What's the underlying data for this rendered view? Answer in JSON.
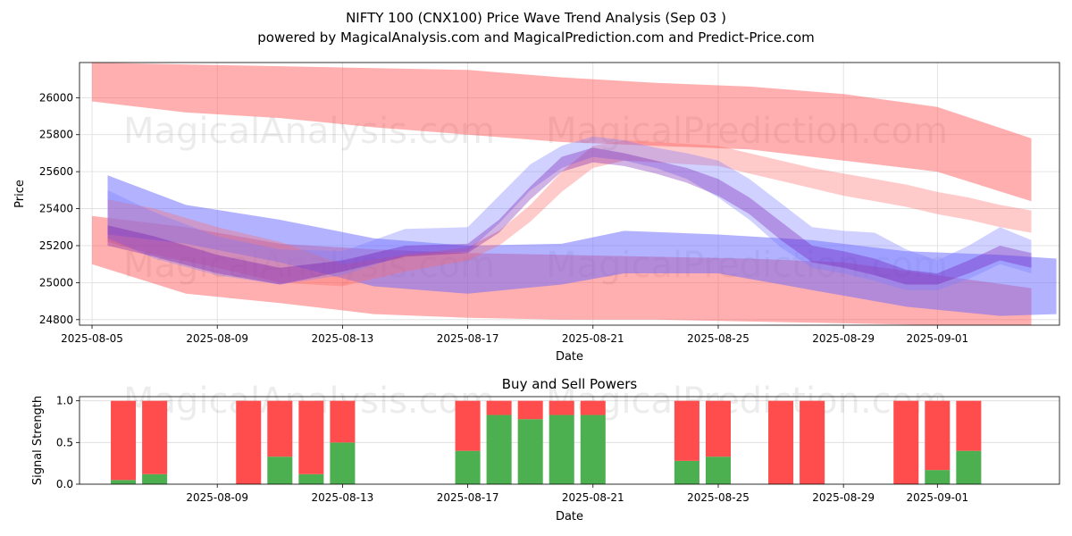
{
  "chart_data": [
    {
      "type": "area",
      "title": "NIFTY 100 (CNX100) Price Wave Trend Analysis (Sep 03 )",
      "subtitle": "powered by MagicalAnalysis.com and MagicalPrediction.com and Predict-Price.com",
      "xlabel": "Date",
      "ylabel": "Price",
      "xlim": [
        -0.4,
        30.9
      ],
      "ylim": [
        24770,
        26190
      ],
      "x_tick_labels": [
        "2025-08-05",
        "2025-08-09",
        "2025-08-13",
        "2025-08-17",
        "2025-08-21",
        "2025-08-25",
        "2025-08-29",
        "2025-09-01"
      ],
      "x_tick_positions": [
        0,
        4,
        8,
        12,
        16,
        20,
        24,
        27
      ],
      "y_ticks": [
        24800,
        25000,
        25200,
        25400,
        25600,
        25800,
        26000
      ],
      "grid": true,
      "watermarks": [
        "MagicalAnalysis.com",
        "MagicalPrediction.com"
      ],
      "series": [
        {
          "name": "red-upper-band",
          "color": "#ff4d4d",
          "opacity": 0.45,
          "x": [
            0,
            3,
            6,
            9,
            12,
            15,
            18,
            21,
            24,
            27,
            30
          ],
          "upper": [
            26190,
            26180,
            26170,
            26160,
            26150,
            26110,
            26080,
            26060,
            26020,
            25950,
            25780
          ],
          "lower": [
            25980,
            25920,
            25890,
            25840,
            25800,
            25760,
            25740,
            25720,
            25660,
            25600,
            25440
          ]
        },
        {
          "name": "red-lower-band",
          "color": "#ff4d4d",
          "opacity": 0.45,
          "x": [
            0,
            3,
            6,
            9,
            12,
            15,
            18,
            21,
            24,
            27,
            30
          ],
          "upper": [
            25360,
            25300,
            25210,
            25180,
            25160,
            25150,
            25140,
            25130,
            25110,
            25040,
            24970
          ],
          "lower": [
            25100,
            24940,
            24890,
            24830,
            24810,
            24800,
            24800,
            24790,
            24780,
            24770,
            24770
          ]
        },
        {
          "name": "blue-lower-band",
          "color": "#6666ff",
          "opacity": 0.5,
          "x": [
            0.5,
            3,
            6,
            9,
            12,
            15,
            17,
            20,
            23,
            26,
            29,
            30.8
          ],
          "upper": [
            25580,
            25420,
            25340,
            25240,
            25200,
            25210,
            25280,
            25260,
            25230,
            25170,
            25150,
            25130
          ],
          "lower": [
            25260,
            25210,
            25110,
            24980,
            24940,
            24990,
            25050,
            25050,
            24960,
            24870,
            24820,
            24830
          ]
        },
        {
          "name": "red-mid-wave",
          "color": "#ff6666",
          "opacity": 0.35,
          "x": [
            0.5,
            2,
            4,
            6,
            8,
            10,
            12,
            13,
            14,
            15,
            16,
            17,
            18,
            19,
            20,
            21,
            22,
            23,
            24,
            25,
            26,
            27,
            28,
            29,
            30
          ],
          "upper": [
            25450,
            25400,
            25300,
            25220,
            25100,
            25150,
            25190,
            25280,
            25420,
            25600,
            25740,
            25770,
            25760,
            25750,
            25740,
            25700,
            25660,
            25620,
            25590,
            25560,
            25530,
            25490,
            25460,
            25420,
            25390
          ],
          "lower": [
            25220,
            25150,
            25080,
            25000,
            24980,
            25060,
            25120,
            25200,
            25330,
            25490,
            25620,
            25660,
            25650,
            25640,
            25630,
            25590,
            25550,
            25510,
            25470,
            25440,
            25410,
            25370,
            25340,
            25300,
            25270
          ]
        },
        {
          "name": "blue-mid-wave",
          "color": "#7b7bff",
          "opacity": 0.35,
          "x": [
            0.5,
            2,
            4,
            6,
            8,
            10,
            12,
            13,
            14,
            15,
            16,
            17,
            18,
            19,
            20,
            21,
            22,
            23,
            24,
            25,
            26,
            27,
            28,
            29,
            30
          ],
          "upper": [
            25500,
            25380,
            25250,
            25180,
            25170,
            25290,
            25300,
            25470,
            25640,
            25740,
            25790,
            25770,
            25730,
            25700,
            25660,
            25560,
            25430,
            25300,
            25280,
            25270,
            25180,
            25120,
            25200,
            25300,
            25230
          ],
          "lower": [
            25240,
            25130,
            25040,
            24990,
            25040,
            25150,
            25170,
            25320,
            25500,
            25620,
            25680,
            25660,
            25620,
            25560,
            25460,
            25340,
            25190,
            25080,
            25050,
            25010,
            24960,
            24960,
            25020,
            25100,
            25050
          ]
        },
        {
          "name": "purple-core-wave",
          "color": "#6600aa",
          "opacity": 0.3,
          "x": [
            0.5,
            2,
            4,
            6,
            8,
            10,
            12,
            13,
            14,
            15,
            16,
            17,
            18,
            19,
            20,
            21,
            22,
            23,
            24,
            25,
            26,
            27,
            28,
            29,
            30
          ],
          "upper": [
            25310,
            25250,
            25150,
            25080,
            25120,
            25200,
            25210,
            25340,
            25520,
            25680,
            25730,
            25700,
            25660,
            25620,
            25560,
            25460,
            25330,
            25200,
            25170,
            25130,
            25070,
            25050,
            25120,
            25200,
            25160
          ],
          "lower": [
            25200,
            25140,
            25050,
            24990,
            25060,
            25140,
            25160,
            25270,
            25450,
            25600,
            25650,
            25630,
            25590,
            25540,
            25470,
            25370,
            25230,
            25110,
            25080,
            25040,
            24990,
            24990,
            25050,
            25120,
            25080
          ]
        }
      ]
    },
    {
      "type": "bar",
      "title": "Buy and Sell Powers",
      "xlabel": "Date",
      "ylabel": "Signal Strength",
      "ylim": [
        0,
        1.05
      ],
      "y_ticks": [
        0.0,
        0.5,
        1.0
      ],
      "y_tick_labels": [
        "0.0",
        "0.5",
        "1.0"
      ],
      "x_tick_labels": [
        "2025-08-09",
        "2025-08-13",
        "2025-08-17",
        "2025-08-21",
        "2025-08-25",
        "2025-08-29",
        "2025-09-01"
      ],
      "x_tick_positions": [
        4,
        8,
        12,
        16,
        20,
        24,
        27
      ],
      "grid": true,
      "categories_x": [
        1,
        2,
        5,
        6,
        7,
        8,
        12,
        13,
        14,
        15,
        16,
        19,
        20,
        22,
        23,
        26,
        27,
        28
      ],
      "series": [
        {
          "name": "buy",
          "color": "#4caf50",
          "values": [
            0.05,
            0.12,
            0.0,
            0.33,
            0.12,
            0.5,
            0.4,
            0.83,
            0.78,
            0.83,
            0.83,
            0.28,
            0.33,
            0.0,
            0.0,
            0.0,
            0.17,
            0.4
          ]
        },
        {
          "name": "sell",
          "color": "#ff4d4d",
          "values": [
            0.95,
            0.88,
            1.0,
            0.67,
            0.88,
            0.5,
            0.6,
            0.17,
            0.22,
            0.17,
            0.17,
            0.72,
            0.67,
            1.0,
            1.0,
            1.0,
            0.83,
            0.6
          ]
        }
      ]
    }
  ]
}
